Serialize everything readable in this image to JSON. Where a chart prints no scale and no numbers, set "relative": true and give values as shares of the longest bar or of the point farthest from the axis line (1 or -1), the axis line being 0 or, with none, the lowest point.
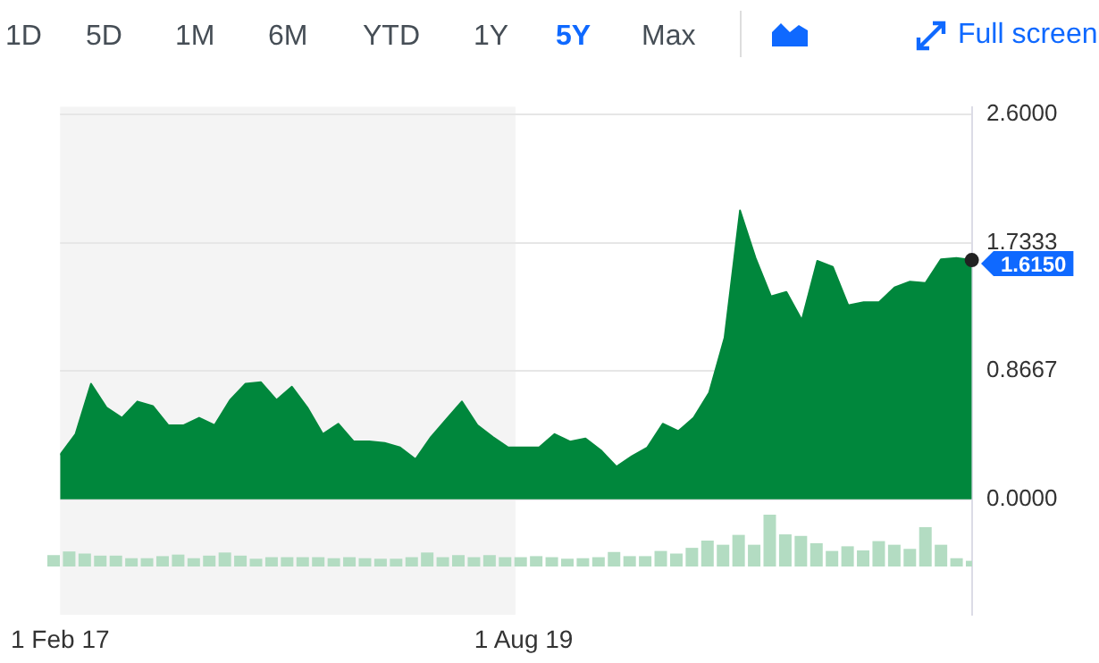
{
  "chart_data": [
    {
      "type": "area",
      "annotations": [
        "1D",
        "5D",
        "1M",
        "6M",
        "YTD",
        "1Y",
        "5Y",
        "Max",
        "Full screen"
      ],
      "x": [
        "2017-02",
        "2017-03",
        "2017-04",
        "2017-05",
        "2017-06",
        "2017-07",
        "2017-08",
        "2017-09",
        "2017-10",
        "2017-11",
        "2017-12",
        "2018-01",
        "2018-02",
        "2018-03",
        "2018-04",
        "2018-05",
        "2018-06",
        "2018-07",
        "2018-08",
        "2018-09",
        "2018-10",
        "2018-11",
        "2018-12",
        "2019-01",
        "2019-02",
        "2019-03",
        "2019-04",
        "2019-05",
        "2019-06",
        "2019-07",
        "2019-08",
        "2019-09",
        "2019-10",
        "2019-11",
        "2019-12",
        "2020-01",
        "2020-02",
        "2020-03",
        "2020-04",
        "2020-05",
        "2020-06",
        "2020-07",
        "2020-08",
        "2020-09",
        "2020-10",
        "2020-11",
        "2020-12",
        "2021-01",
        "2021-02",
        "2021-03",
        "2021-04",
        "2021-05",
        "2021-06",
        "2021-07",
        "2021-08",
        "2021-09",
        "2021-10",
        "2021-11",
        "2021-12",
        "2022-01"
      ],
      "series": [
        {
          "color": "#00873c",
          "values": [
            0.3,
            0.44,
            0.78,
            0.62,
            0.55,
            0.66,
            0.63,
            0.5,
            0.5,
            0.55,
            0.5,
            0.67,
            0.78,
            0.79,
            0.67,
            0.76,
            0.62,
            0.44,
            0.51,
            0.39,
            0.39,
            0.38,
            0.35,
            0.27,
            0.42,
            0.54,
            0.66,
            0.5,
            0.42,
            0.35,
            0.35,
            0.35,
            0.44,
            0.39,
            0.41,
            0.33,
            0.22,
            0.29,
            0.35,
            0.51,
            0.46,
            0.55,
            0.72,
            1.09,
            1.95,
            1.63,
            1.37,
            1.4,
            1.21,
            1.61,
            1.57,
            1.31,
            1.33,
            1.33,
            1.43,
            1.47,
            1.46,
            1.62,
            1.63,
            1.615
          ],
          "value_labels": [
            null,
            null,
            null,
            null,
            null,
            null,
            null,
            null,
            null,
            null,
            null,
            null,
            null,
            null,
            null,
            null,
            null,
            null,
            null,
            null,
            null,
            null,
            null,
            null,
            null,
            null,
            null,
            null,
            null,
            null,
            null,
            null,
            null,
            null,
            null,
            null,
            null,
            null,
            null,
            null,
            null,
            null,
            null,
            null,
            null,
            null,
            null,
            null,
            null,
            null,
            null,
            null,
            null,
            null,
            null,
            null,
            null,
            null,
            null,
            "1.6150"
          ]
        }
      ],
      "ylim": [
        -0.78,
        2.65
      ],
      "yticks": [
        {
          "value": 2.6,
          "label": "2.6000"
        },
        {
          "value": 1.7333,
          "label": "1.7333"
        },
        {
          "value": 0.8667,
          "label": "0.8667"
        },
        {
          "value": 0,
          "label": "0.0000"
        }
      ],
      "xlim": [
        "2017-02",
        "2022-01"
      ],
      "xticks": [
        {
          "value": "2017-02",
          "label": "1 Feb 17"
        },
        {
          "value": "2019-08",
          "label": "1 Aug 19"
        }
      ],
      "bands": [
        {
          "axis": "x",
          "from": "2017-02",
          "to": "2019-07-15",
          "color": "#f4f4f4"
        }
      ],
      "grid": "y",
      "legend": false,
      "marker": "none"
    },
    {
      "type": "bar",
      "relative": true,
      "color": "#b3dcc2",
      "categories": [
        null,
        null,
        null,
        null,
        null,
        null,
        null,
        null,
        null,
        null,
        null,
        null,
        null,
        null,
        null,
        null,
        null,
        null,
        null,
        null,
        null,
        null,
        null,
        null,
        null,
        null,
        null,
        null,
        null,
        null,
        null,
        null,
        null,
        null,
        null,
        null,
        null,
        null,
        null,
        null,
        null,
        null,
        null,
        null,
        null,
        null,
        null,
        null,
        null,
        null,
        null,
        null,
        null,
        null,
        null,
        null,
        null,
        null,
        null,
        null
      ],
      "values": [
        0.22,
        0.29,
        0.25,
        0.21,
        0.21,
        0.16,
        0.16,
        0.2,
        0.23,
        0.16,
        0.21,
        0.27,
        0.21,
        0.15,
        0.18,
        0.18,
        0.18,
        0.18,
        0.16,
        0.18,
        0.16,
        0.15,
        0.15,
        0.18,
        0.27,
        0.18,
        0.22,
        0.18,
        0.22,
        0.18,
        0.18,
        0.2,
        0.18,
        0.15,
        0.16,
        0.18,
        0.28,
        0.2,
        0.2,
        0.3,
        0.25,
        0.36,
        0.5,
        0.42,
        0.61,
        0.42,
        1,
        0.62,
        0.59,
        0.45,
        0.3,
        0.39,
        0.31,
        0.49,
        0.42,
        0.34,
        0.76,
        0.42,
        0.16,
        0.11
      ]
    }
  ]
}
